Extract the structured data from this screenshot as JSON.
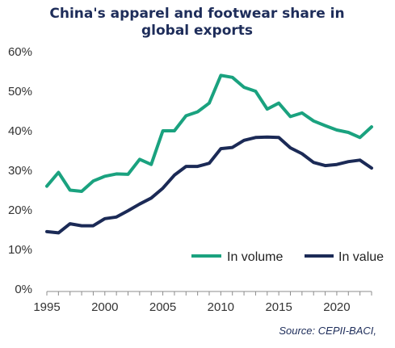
{
  "chart_data": {
    "type": "line",
    "title_lines": [
      "China's apparel and footwear share in",
      "global exports"
    ],
    "x": [
      1995,
      1996,
      1997,
      1998,
      1999,
      2000,
      2001,
      2002,
      2003,
      2004,
      2005,
      2006,
      2007,
      2008,
      2009,
      2010,
      2011,
      2012,
      2013,
      2014,
      2015,
      2016,
      2017,
      2018,
      2019,
      2020,
      2021,
      2022,
      2023
    ],
    "series": [
      {
        "name": "In volume",
        "color": "#1aa27f",
        "values": [
          26,
          29.5,
          25,
          24.7,
          27.3,
          28.5,
          29.1,
          29,
          32.8,
          31.5,
          40,
          40,
          43.8,
          44.8,
          47,
          54,
          53.5,
          51,
          50,
          45.5,
          47,
          43.6,
          44.5,
          42.5,
          41.3,
          40.2,
          39.6,
          38.3,
          41
        ]
      },
      {
        "name": "In value",
        "color": "#1b2a56",
        "values": [
          14.5,
          14.2,
          16.5,
          16,
          16,
          17.8,
          18.2,
          19.8,
          21.5,
          23,
          25.5,
          28.8,
          31,
          31,
          31.8,
          35.5,
          35.8,
          37.6,
          38.3,
          38.4,
          38.3,
          35.7,
          34.2,
          32,
          31.2,
          31.5,
          32.2,
          32.6,
          30.6
        ]
      }
    ],
    "xlim": [
      1995,
      2023
    ],
    "ylim": [
      0,
      60
    ],
    "y_ticks": [
      0,
      10,
      20,
      30,
      40,
      50,
      60
    ],
    "y_tick_labels": [
      "0%",
      "10%",
      "20%",
      "30%",
      "40%",
      "50%",
      "60%"
    ],
    "x_ticks": [
      1995,
      2000,
      2005,
      2010,
      2015,
      2020
    ],
    "x_tick_labels": [
      "1995",
      "2000",
      "2005",
      "2010",
      "2015",
      "2020"
    ],
    "xlabel": "",
    "ylabel": "",
    "grid": false,
    "legend_position": "bottom-right",
    "source": "Source:  CEPII-BACI,"
  }
}
